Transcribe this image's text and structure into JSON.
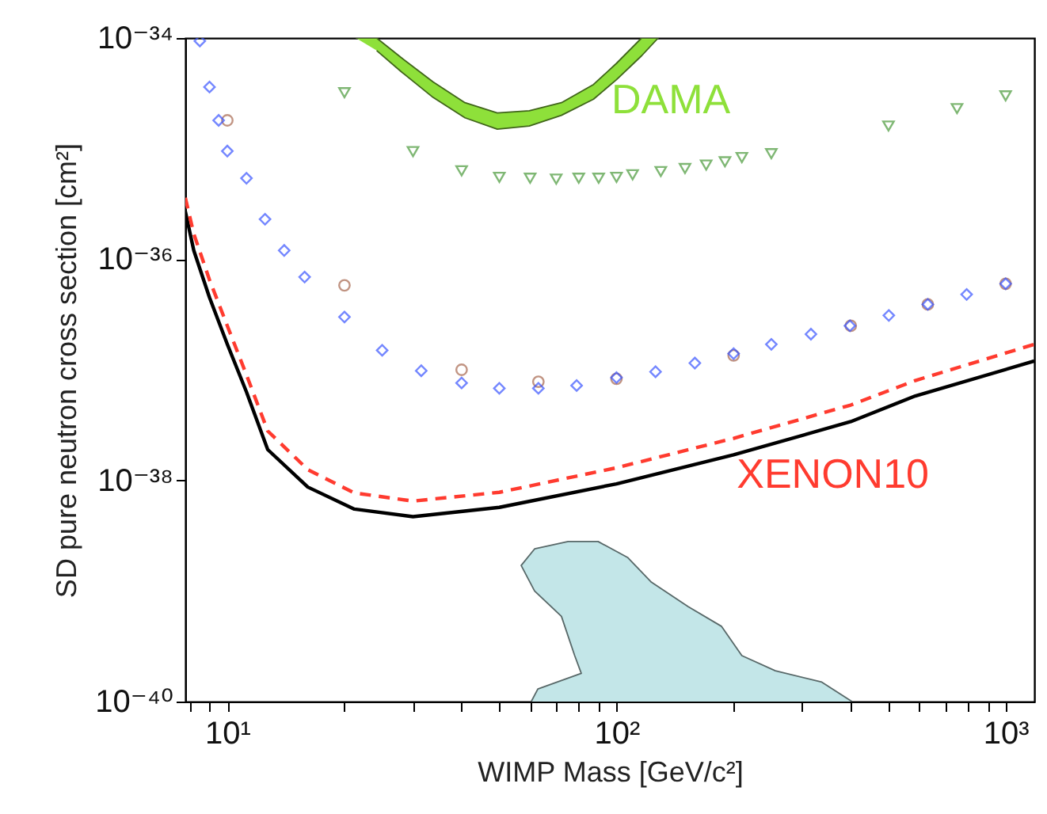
{
  "chart_data": {
    "type": "scatter",
    "xlabel": "WIMP Mass [GeV/c²]",
    "ylabel": "SD pure neutron cross section [cm²]",
    "log": "xy",
    "grid": false,
    "xlim": [
      7.8,
      1185
    ],
    "ylim": [
      1e-40,
      1e-34
    ],
    "xticks": [
      {
        "value": 8,
        "label": null
      },
      {
        "value": 9,
        "label": null
      },
      {
        "value": 10,
        "label": "10¹"
      },
      {
        "value": 20,
        "label": null
      },
      {
        "value": 30,
        "label": null
      },
      {
        "value": 40,
        "label": null
      },
      {
        "value": 50,
        "label": null
      },
      {
        "value": 60,
        "label": null
      },
      {
        "value": 70,
        "label": null
      },
      {
        "value": 80,
        "label": null
      },
      {
        "value": 90,
        "label": null
      },
      {
        "value": 100,
        "label": "10²"
      },
      {
        "value": 200,
        "label": null
      },
      {
        "value": 300,
        "label": null
      },
      {
        "value": 400,
        "label": null
      },
      {
        "value": 500,
        "label": null
      },
      {
        "value": 600,
        "label": null
      },
      {
        "value": 700,
        "label": null
      },
      {
        "value": 800,
        "label": null
      },
      {
        "value": 900,
        "label": null
      },
      {
        "value": 1000,
        "label": "10³"
      }
    ],
    "yticks": [
      {
        "value": 1e-40,
        "label": "10⁻⁴⁰"
      },
      {
        "value": 1e-38,
        "label": "10⁻³⁸"
      },
      {
        "value": 1e-36,
        "label": "10⁻³⁶"
      },
      {
        "value": 1e-34,
        "label": "10⁻³⁴"
      }
    ],
    "series": [
      {
        "type": "area",
        "name": "DAMA",
        "color": "#8ee03a",
        "x": [
          21.4,
          24.2,
          27.9,
          33.8,
          40.8,
          49.4,
          59.7,
          72.2,
          87.3,
          100,
          116,
          128,
          116,
          100,
          87.3,
          72.2,
          59.7,
          49.4,
          40.8,
          33.8,
          27.9,
          24.2
        ],
        "values": [
          1e-34,
          1e-34,
          6.7e-35,
          4e-35,
          2.6e-35,
          2.1e-35,
          2.2e-35,
          2.6e-35,
          3.8e-35,
          5.9e-35,
          1e-34,
          1e-34,
          6.9e-35,
          4.2e-35,
          2.8e-35,
          2e-35,
          1.6e-35,
          1.5e-35,
          1.9e-35,
          2.9e-35,
          5e-35,
          7.7e-35
        ]
      },
      {
        "type": "area",
        "color": "#c3e6e8",
        "x": [
          60.4,
          62.8,
          81.2,
          78.1,
          72.2,
          61.6,
          56.9,
          61.6,
          75.1,
          89.7,
          107,
          123,
          153,
          186,
          210,
          256,
          337,
          403
        ],
        "values": [
          1e-40,
          1.3e-40,
          1.8e-40,
          2.6e-40,
          5.9e-40,
          1e-39,
          1.7e-39,
          2.4e-39,
          2.8e-39,
          2.8e-39,
          2e-39,
          1.2e-39,
          7.2e-40,
          4.8e-40,
          2.6e-40,
          1.9e-40,
          1.5e-40,
          1e-40
        ]
      },
      {
        "type": "line",
        "color": "#000000",
        "line_style": "solid",
        "marker": "none",
        "x": [
          7.8,
          8.2,
          9,
          10,
          11.2,
          12.7,
          16.1,
          21.2,
          30,
          50,
          100,
          200,
          400,
          586,
          1185
        ],
        "values": [
          2.7e-36,
          1.2e-36,
          4.5e-37,
          1.7e-37,
          6.3e-38,
          1.9e-38,
          8.7e-39,
          5.5e-39,
          4.7e-39,
          5.7e-39,
          9.3e-39,
          1.7e-38,
          3.4e-38,
          5.8e-38,
          1.2e-37
        ]
      },
      {
        "type": "line",
        "name": "XENON10",
        "color": "#ff3b2f",
        "line_style": "dashed",
        "marker": "none",
        "x": [
          7.8,
          8.2,
          9,
          10,
          11.2,
          12.7,
          16.1,
          21.2,
          30,
          50,
          100,
          200,
          400,
          586,
          1185
        ],
        "values": [
          3.6e-36,
          1.7e-36,
          6.5e-37,
          2.5e-37,
          9e-38,
          2.8e-38,
          1.25e-38,
          7.7e-39,
          6.5e-39,
          7.8e-39,
          1.3e-38,
          2.4e-38,
          4.8e-38,
          8e-38,
          1.7e-37
        ]
      },
      {
        "marker": "triangle",
        "color": "#4a9a3a",
        "x": [
          20,
          30,
          40,
          50,
          60,
          70,
          80,
          90,
          100,
          110,
          130,
          150,
          170,
          190,
          210,
          250,
          500,
          750,
          1000
        ],
        "values": [
          3.2e-35,
          9.4e-36,
          6.3e-36,
          5.5e-36,
          5.4e-36,
          5.3e-36,
          5.4e-36,
          5.4e-36,
          5.5e-36,
          5.8e-36,
          6.2e-36,
          6.6e-36,
          7.1e-36,
          7.6e-36,
          8.3e-36,
          9e-36,
          1.6e-35,
          2.3e-35,
          3e-35
        ]
      },
      {
        "marker": "circle",
        "color": "#a8684f",
        "x": [
          10,
          20,
          40,
          63,
          100,
          200,
          400,
          631,
          1000
        ],
        "values": [
          1.8e-35,
          5.8e-37,
          1e-37,
          7.8e-38,
          8.3e-38,
          1.35e-37,
          2.5e-37,
          3.9e-37,
          6e-37
        ]
      },
      {
        "marker": "diamond",
        "color": "#3a55ff",
        "x": [
          8.5,
          9,
          9.5,
          10,
          11.2,
          12.5,
          14,
          15.8,
          20,
          25,
          31.5,
          40,
          50,
          63,
          79,
          100,
          126,
          159,
          200,
          250,
          316,
          398,
          501,
          631,
          794,
          1000
        ],
        "values": [
          9.4e-35,
          3.6e-35,
          1.8e-35,
          9.5e-36,
          5.4e-36,
          2.3e-36,
          1.2e-36,
          6.9e-37,
          3e-37,
          1.5e-37,
          9.8e-38,
          7.6e-38,
          6.8e-38,
          6.8e-38,
          7.2e-38,
          8.5e-38,
          9.6e-38,
          1.15e-37,
          1.4e-37,
          1.7e-37,
          2.1e-37,
          2.5e-37,
          3.1e-37,
          3.9e-37,
          4.8e-37,
          6e-37
        ]
      }
    ]
  }
}
